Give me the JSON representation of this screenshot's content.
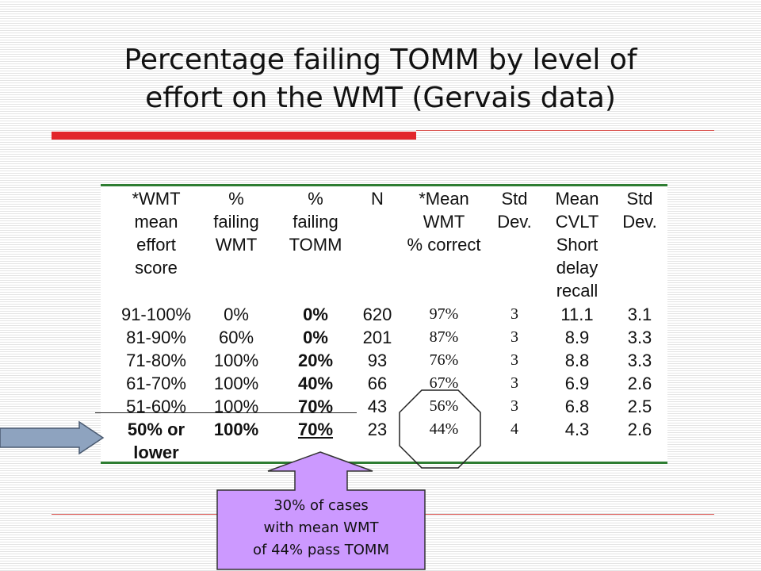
{
  "title": {
    "line1": "Percentage failing TOMM by level of",
    "line2": "effort on the WMT (Gervais data)"
  },
  "table": {
    "headers": [
      [
        "*WMT",
        "mean",
        "effort",
        "score"
      ],
      [
        "%",
        "failing",
        "WMT"
      ],
      [
        "%",
        "failing",
        "TOMM"
      ],
      [
        "N"
      ],
      [
        "*Mean",
        "WMT",
        "% correct"
      ],
      [
        "Std",
        "Dev."
      ],
      [
        "Mean",
        "CVLT",
        "Short",
        "delay",
        "recall"
      ],
      [
        "Std",
        "Dev."
      ]
    ],
    "rows": [
      [
        "91-100%",
        "0%",
        "0%",
        "620",
        "97%",
        "3",
        "11.1",
        "3.1"
      ],
      [
        "81-90%",
        "60%",
        "0%",
        "201",
        "87%",
        "3",
        "8.9",
        "3.3"
      ],
      [
        "71-80%",
        "100%",
        "20%",
        "93",
        "76%",
        "3",
        "8.8",
        "3.3"
      ],
      [
        "61-70%",
        "100%",
        "40%",
        "66",
        "67%",
        "3",
        "6.9",
        "2.6"
      ],
      [
        "51-60%",
        "100%",
        "70%",
        "43",
        "56%",
        "3",
        "6.8",
        "2.5"
      ],
      [
        "50% or",
        "100%",
        "70%",
        "23",
        "44%",
        "4",
        "4.3",
        "2.6"
      ]
    ],
    "last_row_extra": "lower"
  },
  "callout": {
    "line1": "30% of cases",
    "line2": "with mean WMT",
    "line3": "of 44% pass TOMM"
  },
  "colors": {
    "accent_red": "#e2262b",
    "rule_green": "#2e7d32",
    "arrow_fill": "#8ea3bf",
    "callout_fill": "#cc99ff"
  }
}
